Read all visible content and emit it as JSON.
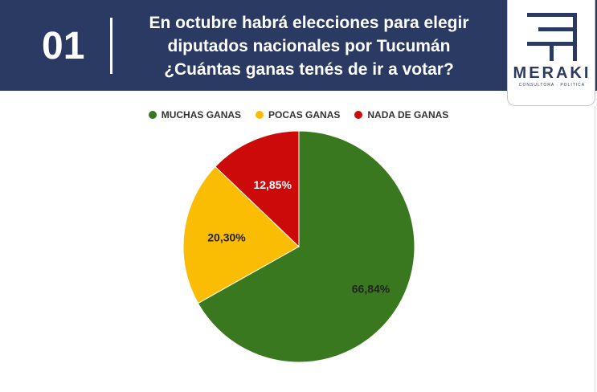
{
  "header": {
    "number": "01",
    "question": "En  octubre habrá elecciones para elegir\ndiputados nacionales por Tucumán\n¿Cuántas ganas tenés de ir a votar?",
    "background": "#2b3a62"
  },
  "logo": {
    "name": "MERAKI",
    "subtitle": "CONSULTORA · POLITICA"
  },
  "chart_data": {
    "type": "pie",
    "categories": [
      "MUCHAS GANAS",
      "POCAS GANAS",
      "NADA DE GANAS"
    ],
    "values": [
      66.84,
      20.3,
      12.85
    ],
    "labels": [
      "66,84%",
      "20,30%",
      "12,85%"
    ],
    "colors": [
      "#3a7820",
      "#fbbc04",
      "#cc0a0a"
    ],
    "label_colors": [
      "#222222",
      "#222222",
      "#ffffff"
    ],
    "start_angle": "12 o'clock, clockwise",
    "legend_position": "top-center"
  }
}
